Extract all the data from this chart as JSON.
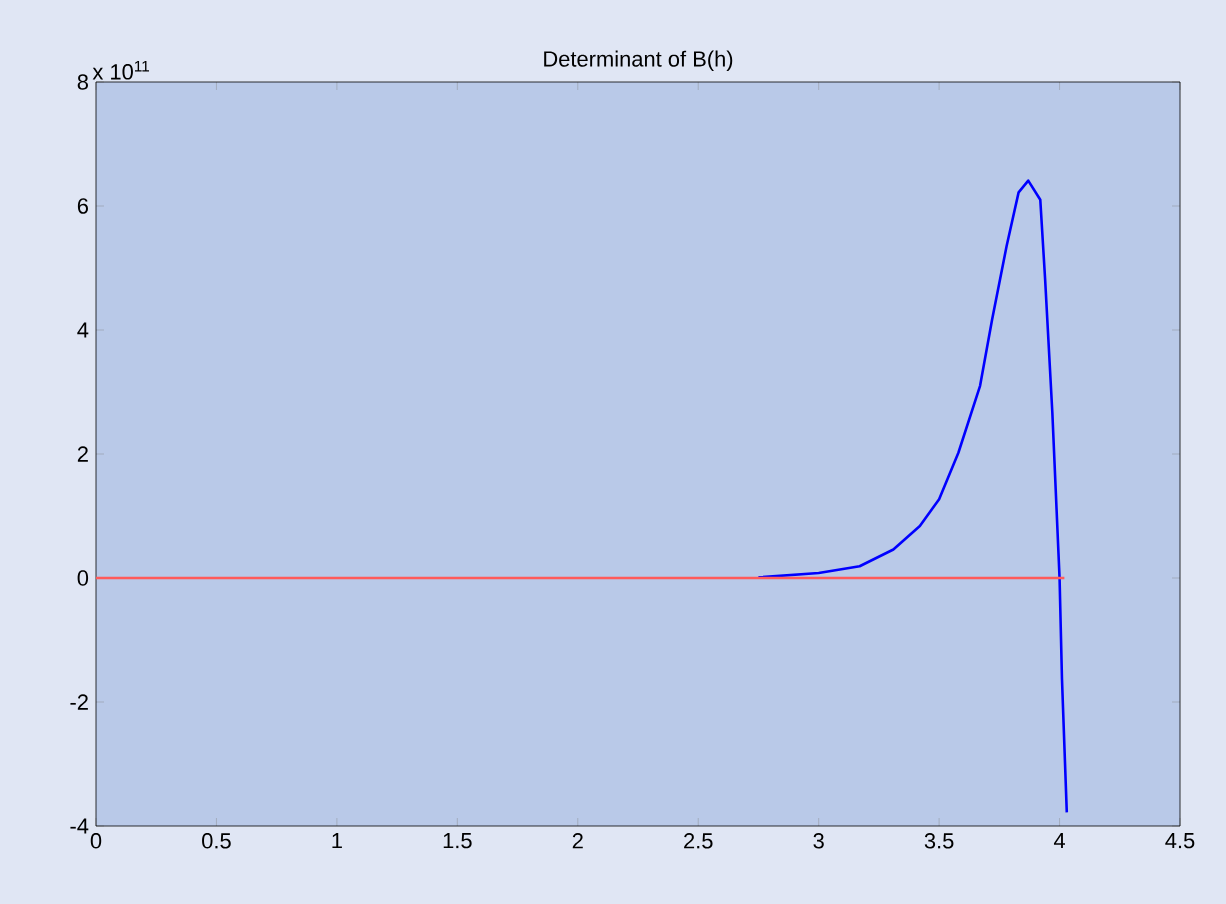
{
  "chart_data": {
    "type": "line",
    "title": "Determinant of B(h)",
    "annotations": [
      "x 10$^{11}$"
    ],
    "xlim": [
      0,
      4.5
    ],
    "xticks": [
      0,
      0.5,
      1,
      1.5,
      2,
      2.5,
      3,
      3.5,
      4,
      4.5
    ],
    "ylim": [
      -4,
      8
    ],
    "yticks": [
      -4,
      -2,
      0,
      2,
      4,
      6,
      8
    ],
    "grid": false,
    "series": [
      {
        "color": "#0000ff",
        "x": [
          2.75,
          3.0,
          3.17,
          3.31,
          3.42,
          3.5,
          3.58,
          3.67,
          3.72,
          3.78,
          3.83,
          3.87,
          3.92,
          3.94,
          3.97,
          4.0,
          4.01,
          4.03
        ],
        "values": [
          0.01,
          0.08,
          0.19,
          0.46,
          0.84,
          1.27,
          2.02,
          3.1,
          4.17,
          5.35,
          6.22,
          6.41,
          6.1,
          4.82,
          2.67,
          0,
          -1.63,
          -3.78
        ]
      },
      {
        "color": "#ff5a5a",
        "x": [
          0,
          4.02
        ],
        "values": [
          0,
          0
        ]
      }
    ]
  }
}
